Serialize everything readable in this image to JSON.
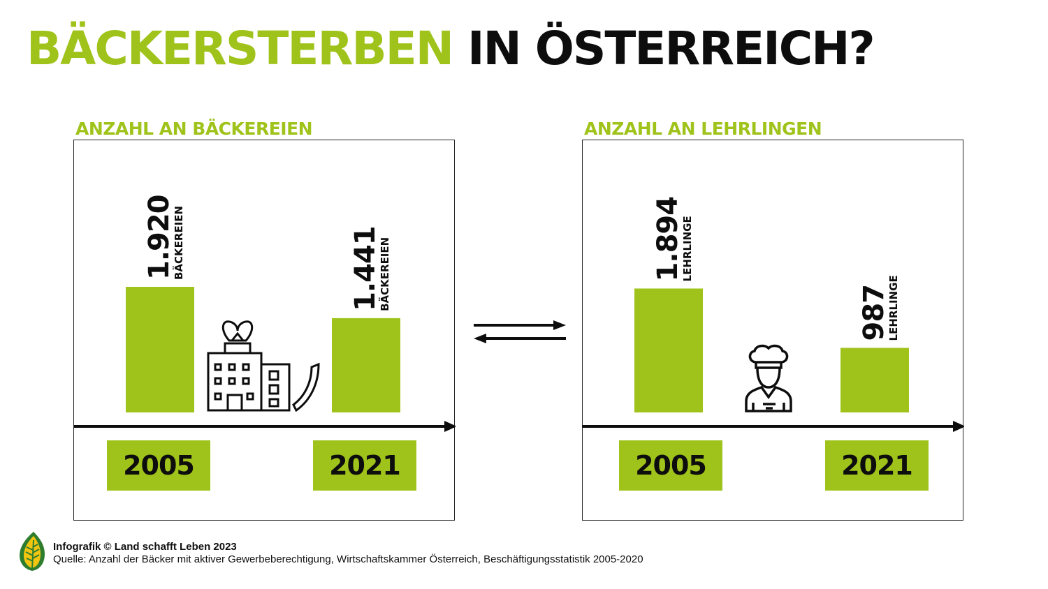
{
  "title": {
    "part1": "BÄCKERSTERBEN",
    "part2": "IN ÖSTERREICH?"
  },
  "colors": {
    "accent": "#9fc31a",
    "text": "#0d0d0d"
  },
  "chart_data": [
    {
      "type": "bar",
      "title": "ANZAHL AN BÄCKEREIEN",
      "categories": [
        "2005",
        "2021"
      ],
      "values": [
        1920,
        1441
      ],
      "value_labels": [
        "1.920",
        "1.441"
      ],
      "unit_label": "BÄCKEREIEN",
      "icon": "bakery-building-icon"
    },
    {
      "type": "bar",
      "title": "ANZAHL AN LEHRLINGEN",
      "categories": [
        "2005",
        "2021"
      ],
      "values": [
        1894,
        987
      ],
      "value_labels": [
        "1.894",
        "987"
      ],
      "unit_label": "LEHRLINGE",
      "icon": "baker-chef-icon"
    }
  ],
  "footer": {
    "credit": "Infografik © Land schafft Leben 2023",
    "source": "Quelle: Anzahl der Bäcker mit aktiver Gewerbeberechtigung, Wirtschaftskammer Österreich, Beschäftigungsstatistik 2005-2020"
  }
}
